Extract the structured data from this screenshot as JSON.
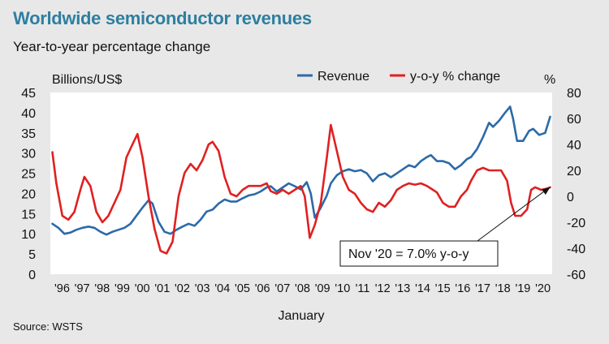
{
  "header": {
    "title": "Worldwide semiconductor revenues",
    "subtitle": "Year-to-year percentage change",
    "source": "Source: WSTS"
  },
  "colors": {
    "revenue": "#2c6aa8",
    "yoy": "#e02020",
    "title": "#2e7fa0",
    "background": "#e8e8e8",
    "plot": "#ffffff"
  },
  "chart_data": {
    "type": "line",
    "title": "Worldwide semiconductor revenues",
    "subtitle": "Year-to-year percentage change",
    "xlabel": "January",
    "ylabel_left": "Billions/US$",
    "ylabel_right": "%",
    "x_range": [
      1995.9,
      2020.95
    ],
    "ylim_left": [
      0,
      45
    ],
    "ylim_right": [
      -60,
      80
    ],
    "yticks_left": [
      0,
      5,
      10,
      15,
      20,
      25,
      30,
      35,
      40,
      45
    ],
    "yticks_right": [
      -60,
      -40,
      -20,
      0,
      20,
      40,
      60,
      80
    ],
    "x_ticks": [
      {
        "x": 1996,
        "label": "'96"
      },
      {
        "x": 1997,
        "label": "'97"
      },
      {
        "x": 1998,
        "label": "'98"
      },
      {
        "x": 1999,
        "label": "'99"
      },
      {
        "x": 2000,
        "label": "'00"
      },
      {
        "x": 2001,
        "label": "'01"
      },
      {
        "x": 2002,
        "label": "'02"
      },
      {
        "x": 2003,
        "label": "'03"
      },
      {
        "x": 2004,
        "label": "'04"
      },
      {
        "x": 2005,
        "label": "'05"
      },
      {
        "x": 2006,
        "label": "'06"
      },
      {
        "x": 2007,
        "label": "'07"
      },
      {
        "x": 2008,
        "label": "'08"
      },
      {
        "x": 2009,
        "label": "'09"
      },
      {
        "x": 2010,
        "label": "'10"
      },
      {
        "x": 2011,
        "label": "'11"
      },
      {
        "x": 2012,
        "label": "'12"
      },
      {
        "x": 2013,
        "label": "'13"
      },
      {
        "x": 2014,
        "label": "'14"
      },
      {
        "x": 2015,
        "label": "'15"
      },
      {
        "x": 2016,
        "label": "'16"
      },
      {
        "x": 2017,
        "label": "'17"
      },
      {
        "x": 2018,
        "label": "'18"
      },
      {
        "x": 2019,
        "label": "'19"
      },
      {
        "x": 2020,
        "label": "'20"
      }
    ],
    "legend": [
      "Revenue",
      "y-o-y % change"
    ],
    "legend_position": "top-right",
    "annotation": {
      "text": "Nov '20 = 7.0% y-o-y",
      "x": 2020.85,
      "value": 7.0,
      "axis": "right"
    },
    "series": [
      {
        "name": "Revenue",
        "axis": "left",
        "points": [
          [
            1996.0,
            12.5
          ],
          [
            1996.3,
            11.5
          ],
          [
            1996.6,
            10.0
          ],
          [
            1996.9,
            10.3
          ],
          [
            1997.2,
            11.0
          ],
          [
            1997.5,
            11.5
          ],
          [
            1997.8,
            11.8
          ],
          [
            1998.1,
            11.5
          ],
          [
            1998.4,
            10.5
          ],
          [
            1998.7,
            9.8
          ],
          [
            1999.0,
            10.5
          ],
          [
            1999.3,
            11.0
          ],
          [
            1999.6,
            11.5
          ],
          [
            1999.9,
            12.5
          ],
          [
            2000.2,
            14.5
          ],
          [
            2000.5,
            16.5
          ],
          [
            2000.8,
            18.3
          ],
          [
            2001.0,
            17.5
          ],
          [
            2001.3,
            13.0
          ],
          [
            2001.6,
            10.5
          ],
          [
            2001.9,
            10.0
          ],
          [
            2002.2,
            11.0
          ],
          [
            2002.5,
            11.8
          ],
          [
            2002.8,
            12.5
          ],
          [
            2003.1,
            12.0
          ],
          [
            2003.4,
            13.5
          ],
          [
            2003.7,
            15.5
          ],
          [
            2004.0,
            16.0
          ],
          [
            2004.3,
            17.5
          ],
          [
            2004.6,
            18.5
          ],
          [
            2004.9,
            18.0
          ],
          [
            2005.2,
            18.0
          ],
          [
            2005.5,
            18.8
          ],
          [
            2005.8,
            19.5
          ],
          [
            2006.1,
            19.8
          ],
          [
            2006.4,
            20.5
          ],
          [
            2006.7,
            21.5
          ],
          [
            2006.9,
            21.8
          ],
          [
            2007.2,
            20.5
          ],
          [
            2007.5,
            21.5
          ],
          [
            2007.8,
            22.5
          ],
          [
            2008.1,
            21.8
          ],
          [
            2008.4,
            21.0
          ],
          [
            2008.7,
            22.8
          ],
          [
            2008.9,
            20.0
          ],
          [
            2009.1,
            14.0
          ],
          [
            2009.4,
            16.5
          ],
          [
            2009.7,
            19.5
          ],
          [
            2009.9,
            22.5
          ],
          [
            2010.2,
            24.5
          ],
          [
            2010.5,
            25.5
          ],
          [
            2010.8,
            26.0
          ],
          [
            2011.1,
            25.5
          ],
          [
            2011.4,
            25.8
          ],
          [
            2011.7,
            25.0
          ],
          [
            2012.0,
            23.0
          ],
          [
            2012.3,
            24.5
          ],
          [
            2012.6,
            25.0
          ],
          [
            2012.9,
            24.0
          ],
          [
            2013.2,
            25.0
          ],
          [
            2013.5,
            26.0
          ],
          [
            2013.8,
            27.0
          ],
          [
            2014.1,
            26.5
          ],
          [
            2014.4,
            28.0
          ],
          [
            2014.7,
            29.0
          ],
          [
            2014.9,
            29.5
          ],
          [
            2015.2,
            28.0
          ],
          [
            2015.5,
            28.0
          ],
          [
            2015.8,
            27.5
          ],
          [
            2016.1,
            26.0
          ],
          [
            2016.4,
            27.0
          ],
          [
            2016.7,
            28.5
          ],
          [
            2016.9,
            29.0
          ],
          [
            2017.2,
            31.0
          ],
          [
            2017.5,
            34.0
          ],
          [
            2017.8,
            37.5
          ],
          [
            2018.0,
            36.5
          ],
          [
            2018.3,
            38.0
          ],
          [
            2018.6,
            40.0
          ],
          [
            2018.85,
            41.5
          ],
          [
            2019.0,
            38.5
          ],
          [
            2019.2,
            33.0
          ],
          [
            2019.5,
            33.0
          ],
          [
            2019.8,
            35.5
          ],
          [
            2020.0,
            36.0
          ],
          [
            2020.3,
            34.5
          ],
          [
            2020.6,
            35.0
          ],
          [
            2020.85,
            39.0
          ]
        ]
      },
      {
        "name": "y-o-y % change",
        "axis": "right",
        "points": [
          [
            1996.0,
            34
          ],
          [
            1996.2,
            10
          ],
          [
            1996.5,
            -15
          ],
          [
            1996.8,
            -18
          ],
          [
            1997.1,
            -12
          ],
          [
            1997.4,
            5
          ],
          [
            1997.6,
            15
          ],
          [
            1997.9,
            8
          ],
          [
            1998.2,
            -12
          ],
          [
            1998.5,
            -20
          ],
          [
            1998.8,
            -15
          ],
          [
            1999.1,
            -5
          ],
          [
            1999.4,
            5
          ],
          [
            1999.7,
            30
          ],
          [
            2000.0,
            40
          ],
          [
            2000.25,
            48
          ],
          [
            2000.5,
            30
          ],
          [
            2000.8,
            0
          ],
          [
            2001.1,
            -25
          ],
          [
            2001.4,
            -42
          ],
          [
            2001.7,
            -44
          ],
          [
            2002.0,
            -35
          ],
          [
            2002.3,
            0
          ],
          [
            2002.6,
            18
          ],
          [
            2002.9,
            25
          ],
          [
            2003.2,
            20
          ],
          [
            2003.5,
            28
          ],
          [
            2003.8,
            40
          ],
          [
            2004.0,
            42
          ],
          [
            2004.3,
            35
          ],
          [
            2004.6,
            15
          ],
          [
            2004.9,
            2
          ],
          [
            2005.2,
            0
          ],
          [
            2005.5,
            5
          ],
          [
            2005.8,
            8
          ],
          [
            2006.1,
            8
          ],
          [
            2006.4,
            8
          ],
          [
            2006.7,
            10
          ],
          [
            2006.9,
            4
          ],
          [
            2007.2,
            2
          ],
          [
            2007.5,
            5
          ],
          [
            2007.8,
            2
          ],
          [
            2008.1,
            5
          ],
          [
            2008.4,
            8
          ],
          [
            2008.6,
            0
          ],
          [
            2008.85,
            -32
          ],
          [
            2009.1,
            -22
          ],
          [
            2009.4,
            -5
          ],
          [
            2009.7,
            30
          ],
          [
            2009.9,
            55
          ],
          [
            2010.2,
            35
          ],
          [
            2010.5,
            15
          ],
          [
            2010.8,
            5
          ],
          [
            2011.1,
            2
          ],
          [
            2011.4,
            -5
          ],
          [
            2011.7,
            -10
          ],
          [
            2012.0,
            -12
          ],
          [
            2012.3,
            -5
          ],
          [
            2012.6,
            -8
          ],
          [
            2012.9,
            -3
          ],
          [
            2013.2,
            5
          ],
          [
            2013.5,
            8
          ],
          [
            2013.8,
            10
          ],
          [
            2014.1,
            9
          ],
          [
            2014.4,
            10
          ],
          [
            2014.7,
            8
          ],
          [
            2014.9,
            6
          ],
          [
            2015.2,
            3
          ],
          [
            2015.5,
            -5
          ],
          [
            2015.8,
            -8
          ],
          [
            2016.1,
            -8
          ],
          [
            2016.4,
            0
          ],
          [
            2016.7,
            5
          ],
          [
            2016.9,
            12
          ],
          [
            2017.2,
            20
          ],
          [
            2017.5,
            22
          ],
          [
            2017.8,
            20
          ],
          [
            2018.1,
            20
          ],
          [
            2018.4,
            20
          ],
          [
            2018.7,
            12
          ],
          [
            2018.9,
            -5
          ],
          [
            2019.1,
            -15
          ],
          [
            2019.4,
            -15
          ],
          [
            2019.7,
            -10
          ],
          [
            2019.9,
            5
          ],
          [
            2020.1,
            7
          ],
          [
            2020.4,
            5
          ],
          [
            2020.7,
            6
          ],
          [
            2020.85,
            7
          ]
        ]
      }
    ]
  }
}
